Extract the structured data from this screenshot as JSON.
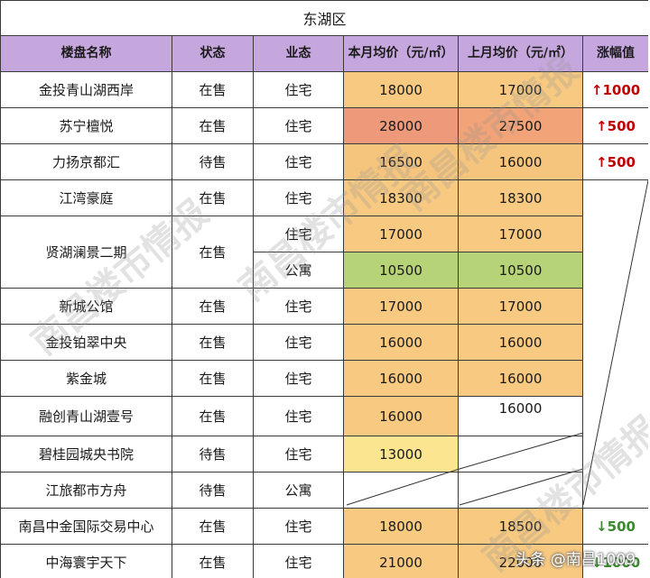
{
  "table": {
    "title": "东湖区",
    "headers": [
      "楼盘名称",
      "状态",
      "业态",
      "本月均价（元/㎡）",
      "上月均价（元/㎡）",
      "涨幅值"
    ],
    "rows": [
      {
        "name": "金投青山湖西岸",
        "status": "在售",
        "type": "住宅",
        "this_month": "18000",
        "last_month": "17000",
        "change": "1000",
        "dir": "up"
      },
      {
        "name": "苏宁檀悦",
        "status": "在售",
        "type": "住宅",
        "this_month": "28000",
        "last_month": "27500",
        "change": "500",
        "dir": "up"
      },
      {
        "name": "力扬京都汇",
        "status": "待售",
        "type": "住宅",
        "this_month": "16500",
        "last_month": "16000",
        "change": "500",
        "dir": "up"
      },
      {
        "name": "江湾豪庭",
        "status": "在售",
        "type": "住宅",
        "this_month": "18300",
        "last_month": "18300",
        "change": "",
        "dir": ""
      },
      {
        "name": "贤湖澜景二期",
        "status": "在售",
        "type": "住宅",
        "this_month": "17000",
        "last_month": "17000",
        "change": "",
        "dir": ""
      },
      {
        "name": "",
        "status": "",
        "type": "公寓",
        "this_month": "10500",
        "last_month": "10500",
        "change": "",
        "dir": ""
      },
      {
        "name": "新城公馆",
        "status": "在售",
        "type": "住宅",
        "this_month": "17000",
        "last_month": "17000",
        "change": "",
        "dir": ""
      },
      {
        "name": "金投铂翠中央",
        "status": "在售",
        "type": "住宅",
        "this_month": "16000",
        "last_month": "16000",
        "change": "",
        "dir": ""
      },
      {
        "name": "紫金城",
        "status": "在售",
        "type": "住宅",
        "this_month": "16000",
        "last_month": "16000",
        "change": "",
        "dir": ""
      },
      {
        "name": "融创青山湖壹号",
        "status": "在售",
        "type": "住宅",
        "this_month": "16000",
        "last_month": "16000",
        "change": "",
        "dir": ""
      },
      {
        "name": "碧桂园城央书院",
        "status": "待售",
        "type": "住宅",
        "this_month": "13000",
        "last_month": "",
        "change": "",
        "dir": ""
      },
      {
        "name": "江旅都市方舟",
        "status": "待售",
        "type": "公寓",
        "this_month": "",
        "last_month": "",
        "change": "",
        "dir": ""
      },
      {
        "name": "南昌中金国际交易中心",
        "status": "在售",
        "type": "住宅",
        "this_month": "18000",
        "last_month": "18500",
        "change": "500",
        "dir": "down"
      },
      {
        "name": "中海寰宇天下",
        "status": "在售",
        "type": "住宅",
        "this_month": "21000",
        "last_month": "22000",
        "change": "1000",
        "dir": "down"
      }
    ]
  },
  "arrows": {
    "up": "↑",
    "down": "↓"
  },
  "colors": {
    "header_bg": "#c6a7dd",
    "up": "#c00000",
    "down": "#3a8a2e"
  },
  "watermark": "南昌楼市情报",
  "brand": "头条 @南昌1009"
}
